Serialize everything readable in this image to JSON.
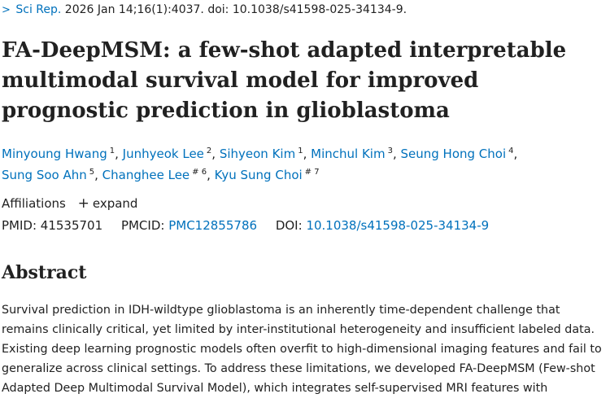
{
  "citation": {
    "journal": "Sci Rep.",
    "details": "2026 Jan 14;16(1):4037. doi: 10.1038/s41598-025-34134-9."
  },
  "article": {
    "title": "FA-DeepMSM: a few-shot adapted interpretable multimodal survival model for improved prognostic prediction in glioblastoma"
  },
  "authors": [
    {
      "name": "Minyoung Hwang",
      "sup": "1"
    },
    {
      "name": "Junhyeok Lee",
      "sup": "2"
    },
    {
      "name": "Sihyeon Kim",
      "sup": "1"
    },
    {
      "name": "Minchul Kim",
      "sup": "3"
    },
    {
      "name": "Seung Hong Choi",
      "sup": "4"
    },
    {
      "name": "Sung Soo Ahn",
      "sup": "5"
    },
    {
      "name": "Changhee Lee",
      "sup": "# 6"
    },
    {
      "name": "Kyu Sung Choi",
      "sup": "# 7"
    }
  ],
  "affiliations": {
    "label": "Affiliations",
    "expand_label": "expand",
    "expand_icon": "+"
  },
  "identifiers": {
    "pmid_label": "PMID:",
    "pmid": "41535701",
    "pmcid_label": "PMCID:",
    "pmcid": "PMC12855786",
    "doi_label": "DOI:",
    "doi": "10.1038/s41598-025-34134-9"
  },
  "abstract": {
    "heading": "Abstract",
    "text": "Survival prediction in IDH-wildtype glioblastoma is an inherently time-dependent challenge that remains clinically critical, yet limited by inter-institutional heterogeneity and insufficient labeled data. Existing deep learning prognostic models often overfit to high-dimensional imaging features and fail to generalize across clinical settings. To address these limitations, we developed FA-DeepMSM (Few-shot Adapted Deep Multimodal Survival Model), which integrates self-supervised MRI features with"
  },
  "colors": {
    "link": "#0071bc",
    "text": "#212121"
  }
}
